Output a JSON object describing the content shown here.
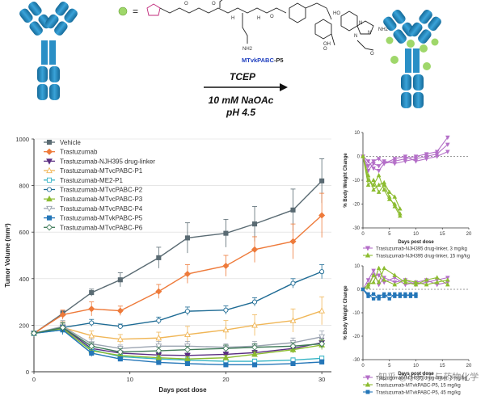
{
  "scheme": {
    "equals_sign": "=",
    "linker_label_blue": "MTvkPABC",
    "linker_label_dash": "-P5",
    "reagent": "TCEP",
    "condition_1": "10 mM NaOAc",
    "condition_2": "pH 4.5",
    "atom_labels": [
      "HO",
      "OH",
      "NH2",
      "N",
      "N",
      "N",
      "O",
      "O",
      "O",
      "O",
      "O",
      "NH2",
      "H",
      "H"
    ]
  },
  "colors": {
    "antibody_blue": "#2a8fc6",
    "payload_green": "#9fd76a",
    "linker_blue": "#1f3fbf",
    "maleimide_magenta": "#c0287a"
  },
  "chart_data": [
    {
      "type": "line",
      "title": "",
      "xlabel": "Days post dose",
      "ylabel": "Tumor Volume (mm³)",
      "xlim": [
        0,
        31
      ],
      "ylim": [
        0,
        1000
      ],
      "xticks": [
        0,
        10,
        20,
        30
      ],
      "yticks": [
        0,
        200,
        400,
        600,
        800,
        1000
      ],
      "x": [
        0,
        3,
        6,
        9,
        13,
        16,
        20,
        23,
        27,
        30
      ],
      "series": [
        {
          "name": "Vehicle",
          "color": "#5a6b73",
          "marker": "square",
          "filled": true,
          "values": [
            165,
            250,
            340,
            395,
            490,
            575,
            595,
            635,
            695,
            820
          ],
          "errors": [
            8,
            12,
            15,
            30,
            45,
            65,
            60,
            75,
            90,
            95
          ]
        },
        {
          "name": "Trastuzumab",
          "color": "#ee7a3a",
          "marker": "diamond",
          "filled": true,
          "values": [
            165,
            245,
            270,
            262,
            345,
            420,
            455,
            525,
            560,
            672
          ],
          "errors": [
            8,
            20,
            30,
            20,
            30,
            40,
            45,
            55,
            75,
            95
          ]
        },
        {
          "name": "Trastuzumab-NJH395 drug-linker",
          "color": "#5a2d82",
          "marker": "tri-down",
          "filled": true,
          "values": [
            165,
            190,
            100,
            80,
            72,
            70,
            75,
            82,
            100,
            125
          ],
          "errors": [
            8,
            25,
            15,
            10,
            10,
            10,
            10,
            10,
            15,
            20
          ]
        },
        {
          "name": "Trastuzumab-MTvcPABC-P1",
          "color": "#f0b657",
          "marker": "triangle",
          "filled": false,
          "values": [
            165,
            190,
            155,
            140,
            145,
            160,
            180,
            200,
            220,
            262
          ],
          "errors": [
            8,
            25,
            20,
            20,
            25,
            35,
            40,
            45,
            50,
            60
          ]
        },
        {
          "name": "Trastuzumab-ME2-P1",
          "color": "#36b4c5",
          "marker": "square",
          "filled": false,
          "values": [
            165,
            180,
            95,
            65,
            55,
            50,
            45,
            45,
            50,
            58
          ],
          "errors": [
            8,
            20,
            15,
            10,
            10,
            10,
            10,
            10,
            10,
            10
          ]
        },
        {
          "name": "Trastuzumab-MTvcPABC-P2",
          "color": "#1e6b94",
          "marker": "circle",
          "filled": false,
          "values": [
            165,
            190,
            210,
            195,
            220,
            260,
            265,
            300,
            380,
            430
          ],
          "errors": [
            8,
            20,
            15,
            10,
            15,
            18,
            18,
            18,
            20,
            30
          ]
        },
        {
          "name": "Trastuzumab-MTvcPABC-P3",
          "color": "#8cbc30",
          "marker": "triangle",
          "filled": true,
          "values": [
            165,
            185,
            90,
            70,
            60,
            55,
            60,
            75,
            95,
            115
          ],
          "errors": [
            8,
            20,
            15,
            10,
            10,
            10,
            10,
            10,
            15,
            20
          ]
        },
        {
          "name": "Trastuzumab-MTvcPABC-P4",
          "color": "#9aa3b0",
          "marker": "tri-down",
          "filled": false,
          "values": [
            165,
            195,
            120,
            100,
            110,
            110,
            105,
            110,
            125,
            150
          ],
          "errors": [
            8,
            25,
            20,
            15,
            20,
            20,
            15,
            20,
            20,
            25
          ]
        },
        {
          "name": "Trastuzumab-MTvkPABC-P5",
          "color": "#2476b8",
          "marker": "square",
          "filled": true,
          "values": [
            165,
            180,
            80,
            55,
            40,
            35,
            30,
            30,
            35,
            42
          ],
          "errors": [
            8,
            20,
            15,
            10,
            8,
            8,
            8,
            8,
            8,
            10
          ]
        },
        {
          "name": "Trastuzumab-MTvcPABC-P6",
          "color": "#3f7a58",
          "marker": "diamond",
          "filled": false,
          "values": [
            165,
            190,
            110,
            85,
            90,
            95,
            100,
            105,
            110,
            120
          ],
          "errors": [
            8,
            20,
            15,
            15,
            15,
            15,
            15,
            15,
            15,
            20
          ]
        }
      ]
    },
    {
      "type": "line",
      "xlabel": "Days post dose",
      "ylabel": "% Body Weight Change",
      "xlim": [
        0,
        20
      ],
      "ylim": [
        -30,
        10
      ],
      "xticks": [
        0,
        5,
        10,
        15,
        20
      ],
      "yticks": [
        -30,
        -20,
        -10,
        0,
        10
      ],
      "legend_placement": "bottom",
      "series": [
        {
          "name": "Trastuzumab-NJH395 drug-linker, 3 mg/kg",
          "color": "#b46fc8",
          "marker": "tri-down",
          "subjects": [
            {
              "x": [
                0,
                1,
                2,
                3,
                4,
                6,
                8,
                10,
                12,
                14,
                16
              ],
              "values": [
                0,
                -4,
                -2,
                -1,
                -3,
                -1,
                0,
                -2,
                -1,
                0,
                2
              ]
            },
            {
              "x": [
                0,
                1,
                2,
                3,
                4,
                6,
                8,
                10,
                12,
                14,
                16
              ],
              "values": [
                0,
                -6,
                -3,
                -4,
                -2,
                -3,
                -2,
                -1,
                0,
                1,
                5
              ]
            },
            {
              "x": [
                0,
                1,
                2,
                3,
                4,
                6,
                8,
                10,
                12,
                14,
                16
              ],
              "values": [
                0,
                -2,
                -5,
                -6,
                -3,
                -2,
                -1,
                0,
                1,
                2,
                8
              ]
            }
          ]
        },
        {
          "name": "Trastuzumab-NJH395 drug-linker, 15 mg/kg",
          "color": "#8cbc30",
          "marker": "triangle",
          "subjects": [
            {
              "x": [
                0,
                1,
                2,
                3,
                4,
                5,
                6,
                7
              ],
              "values": [
                0,
                -10,
                -12,
                -8,
                -14,
                -18,
                -20,
                -24
              ]
            },
            {
              "x": [
                0,
                1,
                2,
                3,
                4,
                5,
                6,
                7
              ],
              "values": [
                0,
                -8,
                -14,
                -12,
                -11,
                -15,
                -17,
                -22
              ]
            },
            {
              "x": [
                0,
                1,
                2,
                3,
                4,
                5,
                6,
                7
              ],
              "values": [
                0,
                -12,
                -10,
                -15,
                -12,
                -17,
                -21,
                -25
              ]
            }
          ]
        }
      ]
    },
    {
      "type": "line",
      "xlabel": "Days post dose",
      "ylabel": "% Body Weight Change",
      "xlim": [
        0,
        20
      ],
      "ylim": [
        -30,
        10
      ],
      "xticks": [
        0,
        5,
        10,
        15,
        20
      ],
      "yticks": [
        -30,
        -20,
        -10,
        0,
        10
      ],
      "legend_placement": "bottom",
      "series": [
        {
          "name": "Trastuzumab-NJH395 drug-linker, 3 mg/kg",
          "color": "#b46fc8",
          "marker": "tri-down",
          "subjects": [
            {
              "x": [
                0,
                1,
                2,
                3,
                4,
                6,
                8,
                10,
                12,
                14,
                16
              ],
              "values": [
                0,
                4,
                8,
                2,
                5,
                3,
                4,
                2,
                3,
                4,
                5
              ]
            },
            {
              "x": [
                0,
                1,
                2,
                3,
                4,
                6,
                8,
                10,
                12,
                14,
                16
              ],
              "values": [
                0,
                2,
                6,
                6,
                3,
                5,
                2,
                3,
                4,
                2,
                3
              ]
            }
          ]
        },
        {
          "name": "Trastuzumab-MTvkPABC-P5, 15 mg/kg",
          "color": "#8cbc30",
          "marker": "triangle",
          "subjects": [
            {
              "x": [
                0,
                1,
                2,
                3,
                4,
                6,
                8,
                10,
                12,
                14,
                16
              ],
              "values": [
                0,
                1,
                6,
                3,
                9,
                6,
                3,
                2,
                4,
                5,
                2
              ]
            },
            {
              "x": [
                0,
                1,
                2,
                3,
                4,
                6,
                8,
                10,
                12,
                14,
                16
              ],
              "values": [
                0,
                2,
                3,
                9,
                4,
                2,
                4,
                3,
                2,
                3,
                4
              ]
            }
          ]
        },
        {
          "name": "Trastuzumab-MTvkPABC-P5, 45 mg/kg",
          "color": "#2476b8",
          "marker": "square",
          "subjects": [
            {
              "x": [
                0,
                1,
                2,
                3,
                4,
                5,
                6,
                7,
                8,
                9,
                10
              ],
              "values": [
                0,
                -3,
                -2,
                -4,
                -3,
                -2,
                -3,
                -2,
                -3,
                -2,
                -3
              ]
            },
            {
              "x": [
                0,
                1,
                2,
                3,
                4,
                5,
                6,
                7,
                8,
                9,
                10
              ],
              "values": [
                0,
                -2,
                -4,
                -3,
                -2,
                -4,
                -2,
                -3,
                -2,
                -3,
                -2
              ]
            }
          ]
        }
      ]
    }
  ],
  "watermark": "知乎 @小分子与药物化学"
}
